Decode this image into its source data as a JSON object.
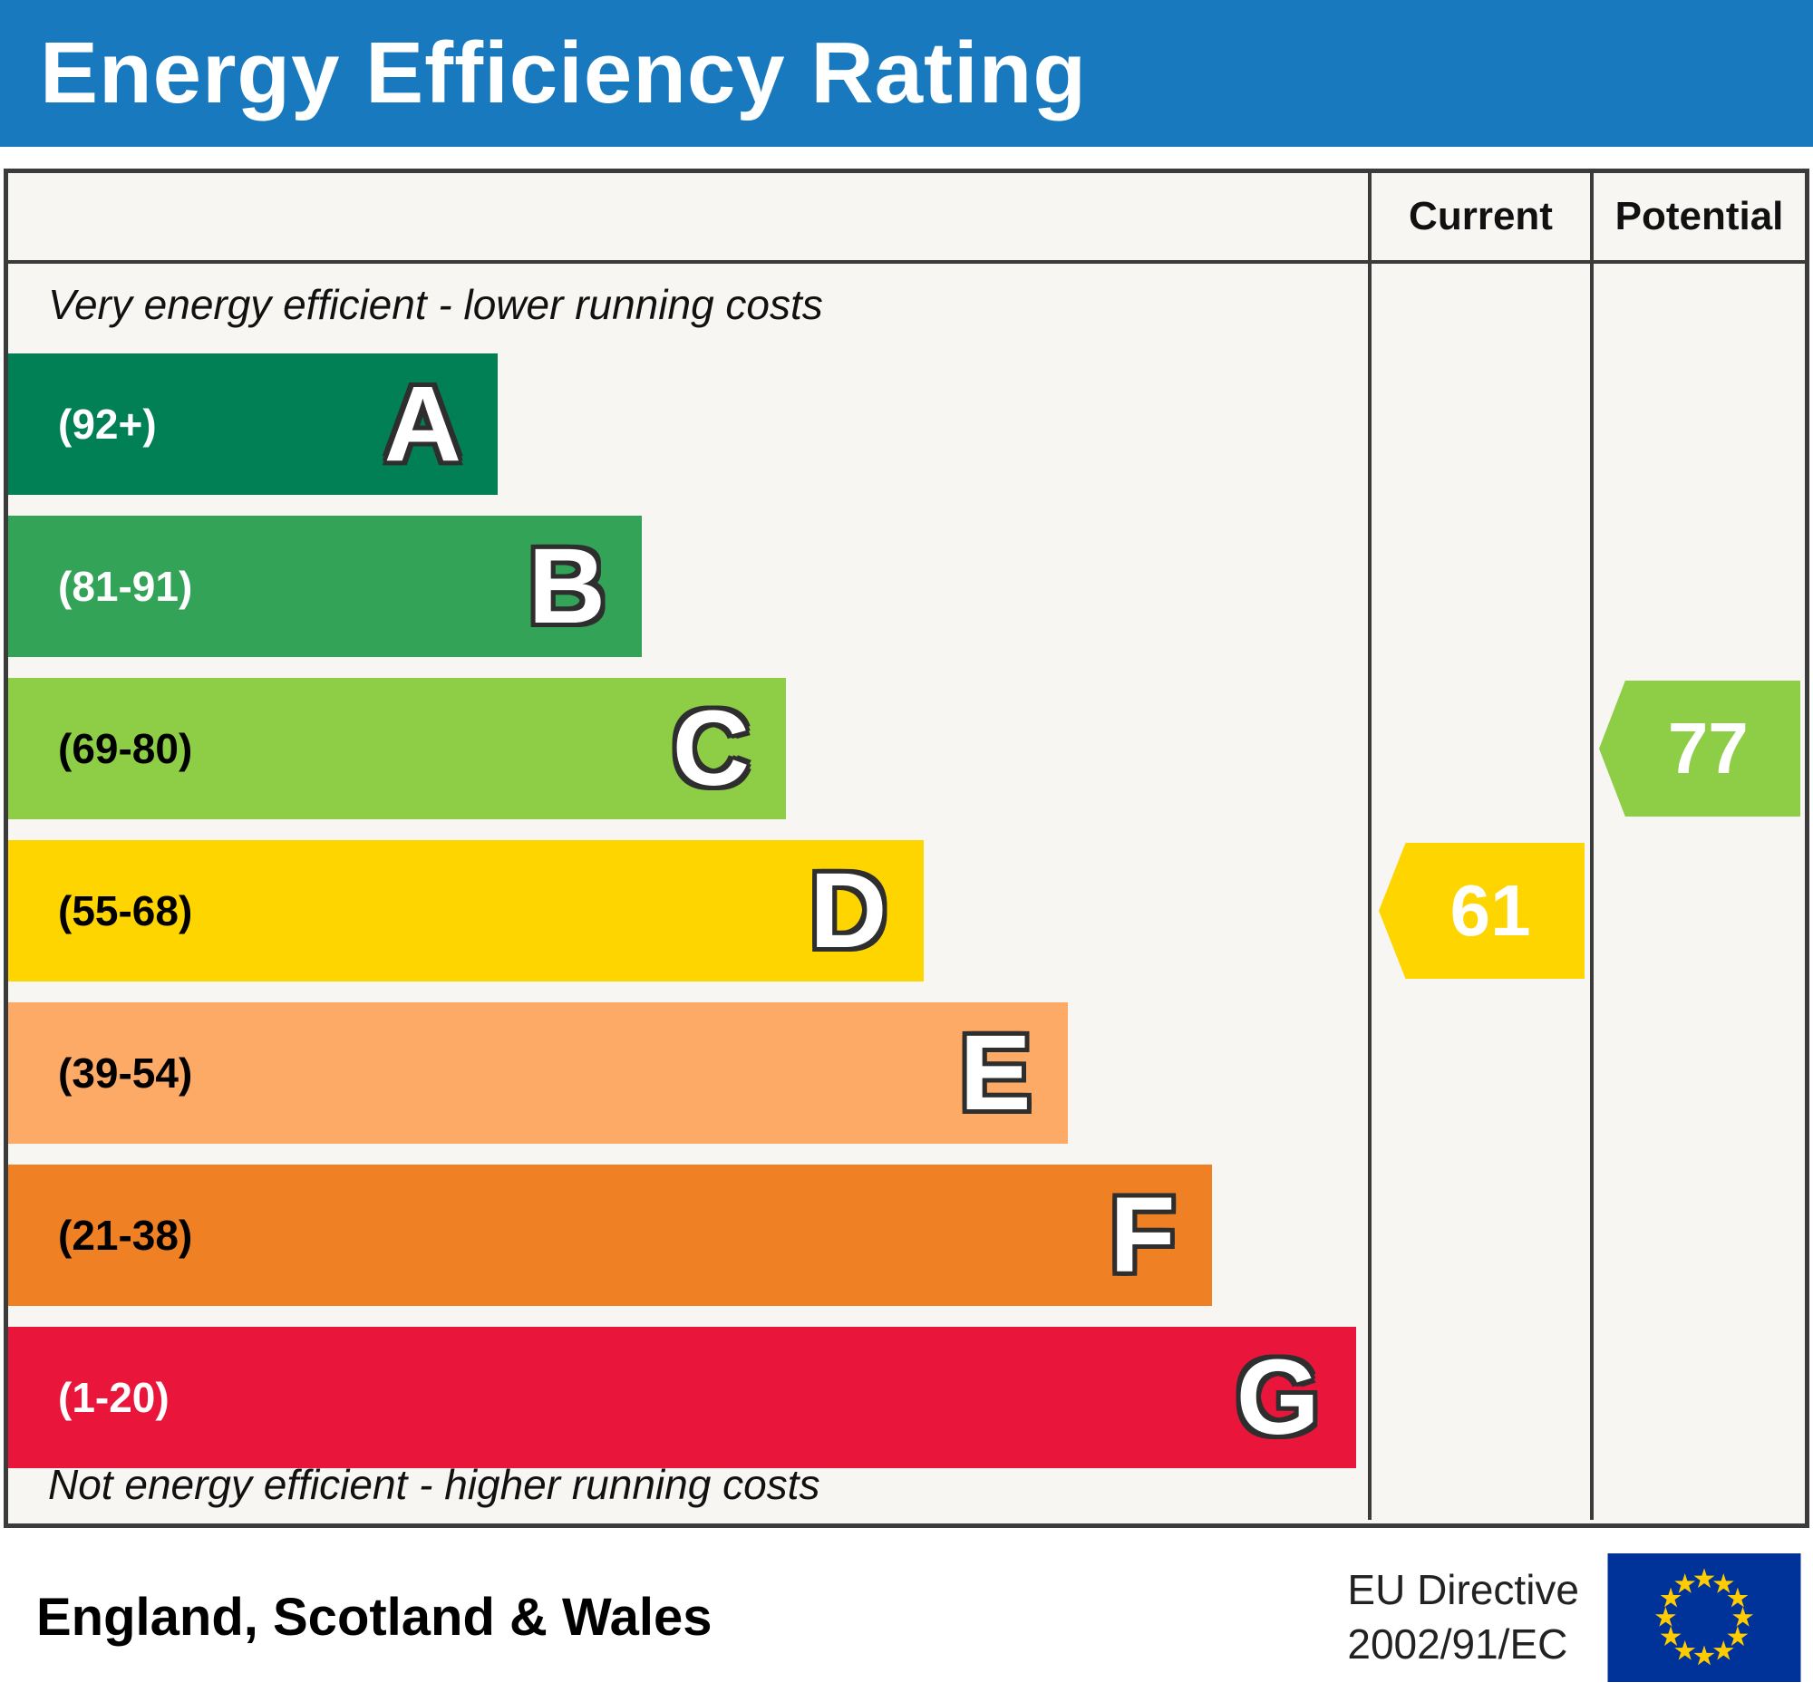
{
  "title": "Energy Efficiency Rating",
  "table": {
    "current_header": "Current",
    "potential_header": "Potential",
    "top_note": "Very energy efficient - lower running costs",
    "bottom_note": "Not energy efficient - higher running costs"
  },
  "footer": {
    "region": "England, Scotland & Wales",
    "directive_line1": "EU Directive",
    "directive_line2": "2002/91/EC"
  },
  "colors": {
    "header_bg": "#1879bf",
    "border": "#3b3b3b",
    "eu_flag_bg": "#003399",
    "eu_star": "#ffcc00"
  },
  "chart_data": {
    "type": "bar",
    "title": "Energy Efficiency Rating",
    "categories": [
      "A",
      "B",
      "C",
      "D",
      "E",
      "F",
      "G"
    ],
    "bands": [
      {
        "letter": "A",
        "range": "(92+)",
        "min": 92,
        "max": 100,
        "color": "#008054",
        "width_pct": 36.0,
        "text_color": "#ffffff"
      },
      {
        "letter": "B",
        "range": "(81-91)",
        "min": 81,
        "max": 91,
        "color": "#33a357",
        "width_pct": 46.6,
        "text_color": "#ffffff"
      },
      {
        "letter": "C",
        "range": "(69-80)",
        "min": 69,
        "max": 80,
        "color": "#8dce46",
        "width_pct": 57.2,
        "text_color": "#000000"
      },
      {
        "letter": "D",
        "range": "(55-68)",
        "min": 55,
        "max": 68,
        "color": "#ffd500",
        "width_pct": 67.3,
        "text_color": "#000000"
      },
      {
        "letter": "E",
        "range": "(39-54)",
        "min": 39,
        "max": 54,
        "color": "#fcaa65",
        "width_pct": 77.9,
        "text_color": "#000000"
      },
      {
        "letter": "F",
        "range": "(21-38)",
        "min": 21,
        "max": 38,
        "color": "#ef8023",
        "width_pct": 88.5,
        "text_color": "#000000"
      },
      {
        "letter": "G",
        "range": "(1-20)",
        "min": 1,
        "max": 20,
        "color": "#e9153b",
        "width_pct": 99.1,
        "text_color": "#ffffff"
      }
    ],
    "current": {
      "value": 61,
      "band": "D",
      "color": "#ffd500"
    },
    "potential": {
      "value": 77,
      "band": "C",
      "color": "#8dce46"
    }
  }
}
